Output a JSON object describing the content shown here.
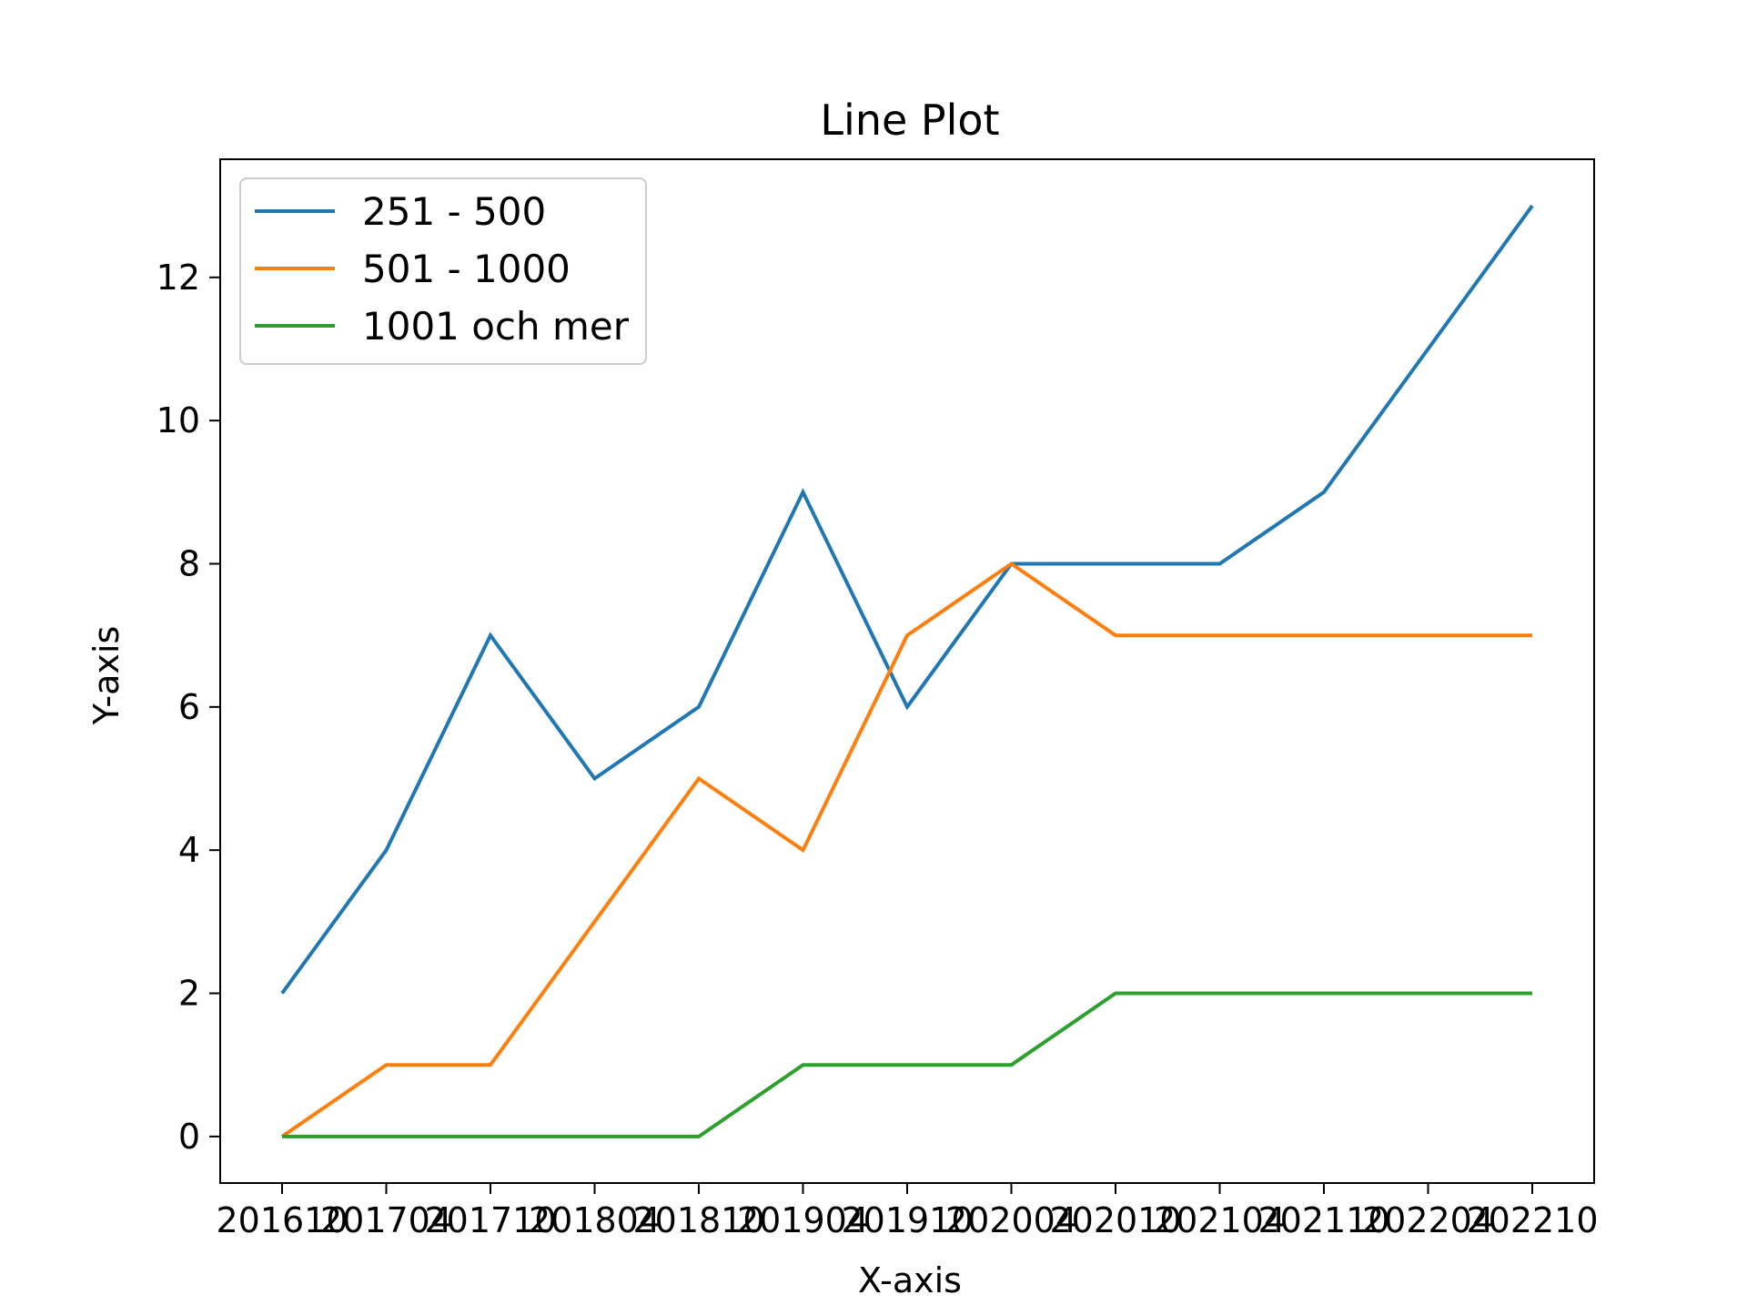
{
  "chart_data": {
    "type": "line",
    "title": "Line Plot",
    "xlabel": "X-axis",
    "ylabel": "Y-axis",
    "categories": [
      "201610",
      "201704",
      "201710",
      "201804",
      "201810",
      "201904",
      "201910",
      "202004",
      "202010",
      "202104",
      "202110",
      "202204",
      "202210"
    ],
    "yticks": [
      0,
      2,
      4,
      6,
      8,
      10,
      12
    ],
    "ylim": [
      -0.65,
      13.65
    ],
    "grid": false,
    "legend_position": "top-left",
    "series": [
      {
        "name": "251 - 500",
        "color": "#1f77b4",
        "values": [
          2,
          4,
          7,
          5,
          6,
          9,
          6,
          8,
          8,
          8,
          9,
          11,
          13
        ]
      },
      {
        "name": "501 - 1000",
        "color": "#ff7f0e",
        "values": [
          0,
          1,
          1,
          3,
          5,
          4,
          7,
          8,
          7,
          7,
          7,
          7,
          7
        ]
      },
      {
        "name": "1001 och mer",
        "color": "#2ca02c",
        "values": [
          0,
          0,
          0,
          0,
          0,
          1,
          1,
          1,
          2,
          2,
          2,
          2,
          2
        ]
      }
    ]
  }
}
